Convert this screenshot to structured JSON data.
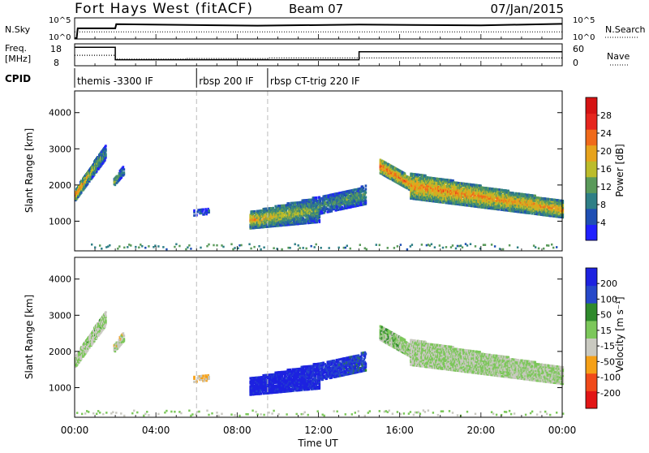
{
  "header": {
    "title": "Fort Hays West (fitACF)",
    "beam": "Beam 07",
    "date": "07/Jan/2015"
  },
  "panel_labels": {
    "nsky": "N.Sky",
    "nsearch": "N.Search",
    "freq_line1": "Freq.",
    "freq_line2": "[MHz]",
    "nave": "Nave",
    "cpid": "CPID"
  },
  "cpid_segments": [
    {
      "start": 0.0,
      "label": "themis -3300 IF"
    },
    {
      "start": 6.0,
      "label": "rbsp 200 IF"
    },
    {
      "start": 9.5,
      "label": "rbsp CT-trig 220 IF"
    }
  ],
  "chart_data": [
    {
      "type": "line",
      "name": "noise",
      "left_ticks": [
        "10^5",
        "10^0"
      ],
      "right_ticks": [
        "10^5",
        "10^0"
      ],
      "xlim": [
        0,
        24
      ],
      "nsky": {
        "x": [
          0,
          0.1,
          0.15,
          2.0,
          2.05,
          9.0,
          14.0,
          20.0,
          24.0
        ],
        "y": [
          0.0,
          0.0,
          0.55,
          0.55,
          0.78,
          0.7,
          0.76,
          0.72,
          0.8
        ]
      },
      "nsearch": {
        "x": [
          0,
          24
        ],
        "y": [
          0.35,
          0.35
        ]
      }
    },
    {
      "type": "line",
      "name": "frequency",
      "left_ticks": [
        "18",
        "8"
      ],
      "right_ticks": [
        "60",
        "0"
      ],
      "xlim": [
        0,
        24
      ],
      "freq": {
        "x": [
          0,
          2.0,
          2.0,
          14.0,
          14.0,
          24.0
        ],
        "y": [
          17.0,
          17.0,
          10.0,
          10.0,
          14.5,
          14.5
        ]
      },
      "nave": {
        "x": [
          0,
          2.0,
          2.0,
          5.5,
          5.5,
          9.5,
          9.5,
          24.0
        ],
        "y": [
          27,
          27,
          14,
          14,
          16,
          16,
          18,
          18
        ]
      }
    },
    {
      "type": "heatmap",
      "name": "power",
      "ylabel": "Slant Range [km]",
      "yticks": [
        1000,
        2000,
        3000,
        4000
      ],
      "ylim": [
        180,
        4600
      ],
      "xlim": [
        0,
        24
      ],
      "colorbar": {
        "label": "Power [dB]",
        "ticks": [
          "28",
          "24",
          "20",
          "16",
          "12",
          "8",
          "4"
        ],
        "range": [
          0,
          32
        ]
      },
      "regions": [
        {
          "x": [
            0.0,
            1.5
          ],
          "center": [
            1700,
            2900
          ],
          "width": [
            300,
            400
          ],
          "value": [
            24,
            10
          ],
          "density": 0.85
        },
        {
          "x": [
            1.9,
            2.4
          ],
          "center": [
            2050,
            2400
          ],
          "width": [
            200,
            250
          ],
          "value": [
            16,
            8
          ],
          "density": 0.7
        },
        {
          "x": [
            5.8,
            6.6
          ],
          "center": [
            1200,
            1250
          ],
          "width": [
            150,
            150
          ],
          "value": [
            6,
            6
          ],
          "density": 0.4
        },
        {
          "x": [
            8.6,
            12.0
          ],
          "center": [
            1000,
            1300
          ],
          "width": [
            450,
            700
          ],
          "value": [
            20,
            12
          ],
          "density": 0.8
        },
        {
          "x": [
            12.0,
            14.3
          ],
          "center": [
            1400,
            1700
          ],
          "width": [
            450,
            500
          ],
          "value": [
            10,
            12
          ],
          "density": 0.7
        },
        {
          "x": [
            15.0,
            16.5
          ],
          "center": [
            2500,
            2000
          ],
          "width": [
            400,
            350
          ],
          "value": [
            24,
            22
          ],
          "density": 0.9
        },
        {
          "x": [
            16.5,
            24.0
          ],
          "center": [
            1950,
            1300
          ],
          "width": [
            700,
            450
          ],
          "value": [
            22,
            20
          ],
          "density": 0.85
        }
      ]
    },
    {
      "type": "heatmap",
      "name": "velocity",
      "ylabel": "Slant Range [km]",
      "yticks": [
        1000,
        2000,
        3000,
        4000
      ],
      "ylim": [
        180,
        4600
      ],
      "xlim": [
        0,
        24
      ],
      "colorbar": {
        "label": "Velocity [m s⁻¹]",
        "ticks": [
          "200",
          "100",
          "50",
          "15",
          "-15",
          "-50",
          "-100",
          "-200"
        ],
        "range": [
          -250,
          250
        ]
      },
      "regions": [
        {
          "x": [
            0.0,
            1.5
          ],
          "center": [
            1700,
            2900
          ],
          "width": [
            300,
            400
          ],
          "value": [
            0,
            5
          ],
          "density": 0.85
        },
        {
          "x": [
            1.9,
            2.4
          ],
          "center": [
            2050,
            2400
          ],
          "width": [
            200,
            250
          ],
          "value": [
            -40,
            0
          ],
          "density": 0.7
        },
        {
          "x": [
            5.8,
            6.6
          ],
          "center": [
            1200,
            1250
          ],
          "width": [
            150,
            150
          ],
          "value": [
            -60,
            -60
          ],
          "density": 0.4
        },
        {
          "x": [
            8.6,
            12.0
          ],
          "center": [
            1000,
            1300
          ],
          "width": [
            450,
            700
          ],
          "value": [
            240,
            220
          ],
          "density": 0.85
        },
        {
          "x": [
            12.0,
            14.3
          ],
          "center": [
            1400,
            1700
          ],
          "width": [
            450,
            500
          ],
          "value": [
            200,
            160
          ],
          "density": 0.7
        },
        {
          "x": [
            15.0,
            16.5
          ],
          "center": [
            2500,
            2000
          ],
          "width": [
            400,
            350
          ],
          "value": [
            30,
            0
          ],
          "density": 0.9
        },
        {
          "x": [
            16.5,
            24.0
          ],
          "center": [
            1950,
            1300
          ],
          "width": [
            700,
            450
          ],
          "value": [
            0,
            0
          ],
          "density": 0.85
        }
      ]
    }
  ],
  "x_axis": {
    "label": "Time UT",
    "tick_labels": [
      "00:00",
      "04:00",
      "08:00",
      "12:00",
      "16:00",
      "20:00",
      "00:00"
    ],
    "tick_values": [
      0,
      4,
      8,
      12,
      16,
      20,
      24
    ]
  },
  "power_colors": [
    "#2020ff",
    "#1f4fb4",
    "#2f7f86",
    "#5a9a5a",
    "#bcbc2a",
    "#e7a31c",
    "#f06a1a",
    "#e6261e",
    "#d51313"
  ],
  "velocity_colors": [
    "#e21515",
    "#f04a1a",
    "#f5a017",
    "#c9c9c0",
    "#7cc75a",
    "#2f8a2c",
    "#2648c9",
    "#1d22e0"
  ]
}
